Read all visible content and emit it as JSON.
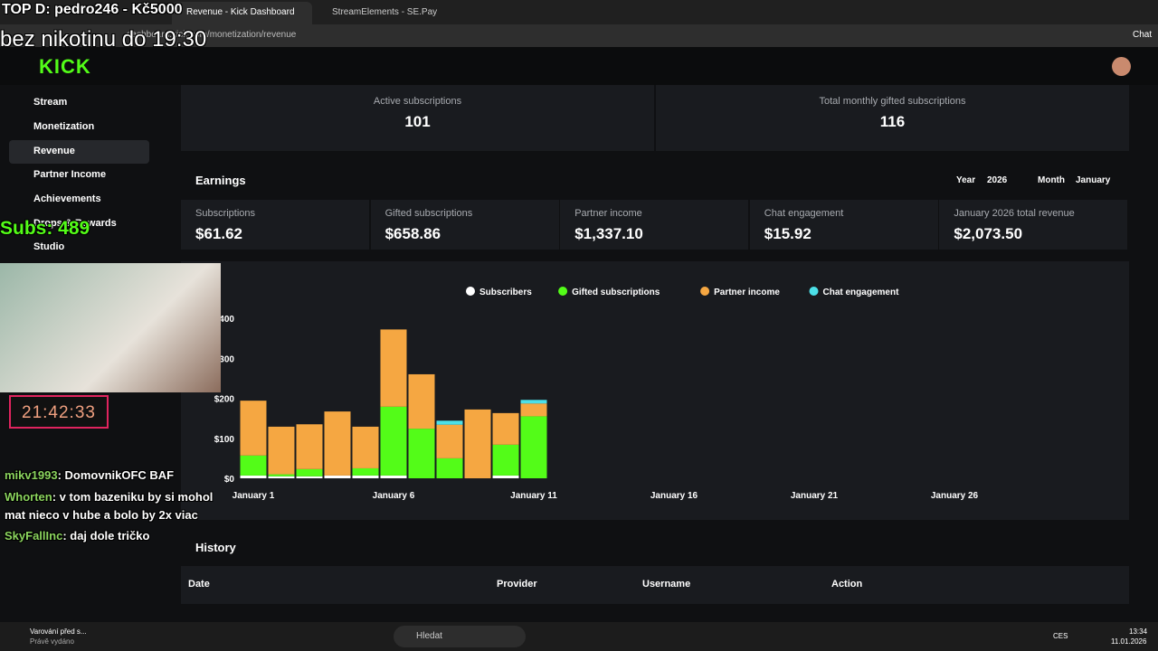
{
  "browser": {
    "tabs": [
      "Revenue - Kick Dashboard",
      "StreamElements - SE.Pay"
    ],
    "url": "dashboard.kick.com/monetization/revenue",
    "chat_button": "Chat"
  },
  "overlay": {
    "top_donor": "TOP D: pedro246 - Kč5000",
    "goal": "bez nikotinu do 19:30",
    "subs": "Subs: 489",
    "timer": "21:42:33",
    "chat": [
      {
        "user": "mikv1993",
        "message": ": DomovnikOFC BAF"
      },
      {
        "user": "Whorten",
        "message": ": v tom bazeniku by si mohol mat nieco v hube a bolo by 2x viac"
      },
      {
        "user": "SkyFallInc",
        "message": ": daj dole tričko"
      }
    ]
  },
  "sidebar": {
    "logo": "KICK",
    "items": [
      "Stream",
      "Monetization",
      "Revenue",
      "Partner Income",
      "Achievements",
      "Drops & Rewards",
      "Studio"
    ]
  },
  "stats": [
    {
      "label": "Active subscriptions",
      "value": "101"
    },
    {
      "label": "Total monthly gifted subscriptions",
      "value": "116"
    }
  ],
  "earnings": {
    "title": "Earnings",
    "year_label": "Year",
    "year": "2026",
    "month_label": "Month",
    "month": "January",
    "cards": [
      {
        "label": "Subscriptions",
        "value": "$61.62"
      },
      {
        "label": "Gifted subscriptions",
        "value": "$658.86"
      },
      {
        "label": "Partner income",
        "value": "$1,337.10"
      },
      {
        "label": "Chat engagement",
        "value": "$15.92"
      },
      {
        "label": "January 2026 total revenue",
        "value": "$2,073.50"
      }
    ]
  },
  "chart_data": {
    "type": "stacked-bar",
    "categories": [
      "January 1",
      null,
      null,
      null,
      null,
      "January 6",
      null,
      null,
      null,
      null,
      "January 11",
      null,
      null,
      null,
      null,
      "January 16",
      null,
      null,
      null,
      null,
      "January 21",
      null,
      null,
      null,
      null,
      "January 26",
      null,
      null,
      null,
      null,
      null
    ],
    "series": [
      {
        "name": "Subscribers",
        "color": "#ffffff",
        "values": [
          7,
          5,
          5,
          7,
          7,
          7,
          0,
          0,
          0,
          7,
          0,
          null,
          null,
          null,
          null,
          null,
          null,
          null,
          null,
          null,
          null,
          null,
          null,
          null,
          null,
          null,
          null,
          null,
          null,
          null,
          null
        ]
      },
      {
        "name": "Gifted subscriptions",
        "color": "#53fc18",
        "values": [
          50,
          5,
          18,
          0,
          18,
          172,
          124,
          50,
          0,
          77,
          155,
          null,
          null,
          null,
          null,
          null,
          null,
          null,
          null,
          null,
          null,
          null,
          null,
          null,
          null,
          null,
          null,
          null,
          null,
          null,
          null
        ]
      },
      {
        "name": "Partner income",
        "color": "#f5a742",
        "values": [
          137,
          119,
          112,
          160,
          104,
          193,
          136,
          84,
          172,
          79,
          32,
          null,
          null,
          null,
          null,
          null,
          null,
          null,
          null,
          null,
          null,
          null,
          null,
          null,
          null,
          null,
          null,
          null,
          null,
          null,
          null
        ]
      },
      {
        "name": "Chat engagement",
        "color": "#4ce0e8",
        "values": [
          0,
          0,
          0,
          0,
          0,
          0,
          0,
          10,
          0,
          0,
          9,
          null,
          null,
          null,
          null,
          null,
          null,
          null,
          null,
          null,
          null,
          null,
          null,
          null,
          null,
          null,
          null,
          null,
          null,
          null,
          null
        ]
      }
    ],
    "ylim": [
      0,
      400
    ],
    "yticks": [
      {
        "value": 0,
        "label": "$0"
      },
      {
        "value": 100,
        "label": "$100"
      },
      {
        "value": 200,
        "label": "$200"
      },
      {
        "value": 300,
        "label": "$300"
      },
      {
        "value": 400,
        "label": "$400"
      }
    ]
  },
  "history": {
    "title": "History",
    "columns": [
      "Date",
      "Provider",
      "Username",
      "Action"
    ]
  },
  "taskbar": {
    "notification_title": "Varování před s...",
    "notification_sub": "Právě vydáno",
    "search": "Hledat",
    "lang": "CES",
    "time": "13:34",
    "date": "11.01.2026"
  }
}
